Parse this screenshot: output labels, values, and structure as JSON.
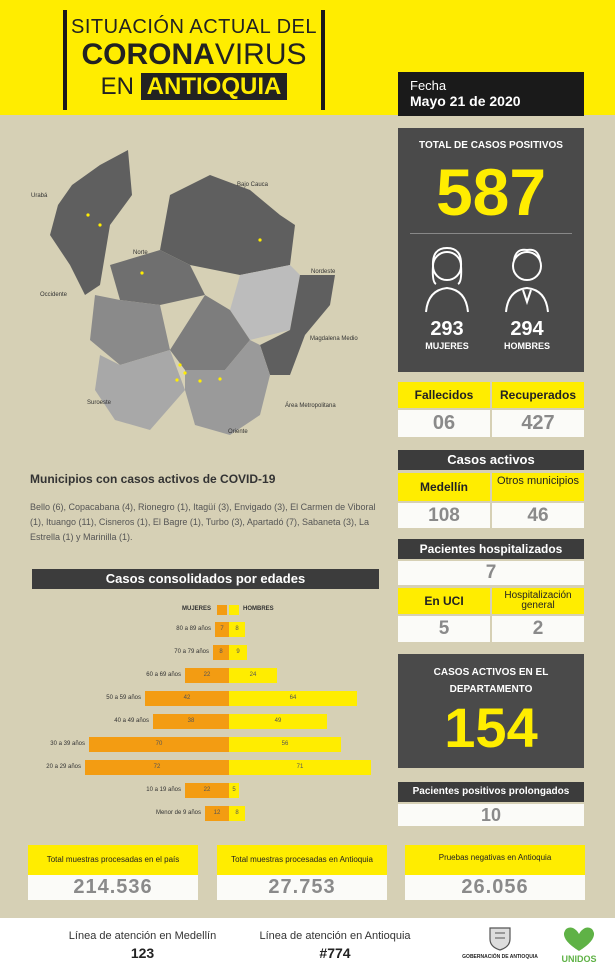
{
  "header": {
    "line1": "SITUACIÓN ACTUAL DEL",
    "line2_bold": "CORONA",
    "line2_normal": "VIRUS",
    "line3_normal": "EN",
    "line3_bold": "ANTIOQUIA"
  },
  "date": {
    "label": "Fecha",
    "value": "Mayo 21 de 2020"
  },
  "map": {
    "regions": [
      "Urabá",
      "Bajo Cauca",
      "Norte",
      "Nordeste",
      "Occidente",
      "Magdalena Medio",
      "Suroeste",
      "Área Metropolitana",
      "Oriente"
    ]
  },
  "total": {
    "title": "TOTAL DE CASOS POSITIVOS",
    "value": "587",
    "women_value": "293",
    "women_label": "MUJERES",
    "men_value": "294",
    "men_label": "HOMBRES"
  },
  "outcomes": {
    "deaths_label": "Fallecidos",
    "recovered_label": "Recuperados",
    "deaths_value": "06",
    "recovered_value": "427"
  },
  "active": {
    "title": "Casos activos",
    "medellin_label": "Medellín",
    "others_label": "Otros municipios",
    "medellin_value": "108",
    "others_value": "46"
  },
  "hospital": {
    "title": "Pacientes hospitalizados",
    "value": "7",
    "uci_label": "En UCI",
    "general_label": "Hospitalización general",
    "uci_value": "5",
    "general_value": "2"
  },
  "department": {
    "title": "CASOS ACTIVOS EN EL DEPARTAMENTO",
    "value": "154"
  },
  "prolonged": {
    "title": "Pacientes positivos prolongados",
    "value": "10"
  },
  "municipalities": {
    "title": "Municipios con casos activos de COVID-19",
    "text": "Bello (6), Copacabana (4), Rionegro (1), Itagüí (3), Envigado (3), El Carmen de Viboral (1), Ituango (11), Cisneros (1), El Bagre (1), Turbo (3), Apartadó (7), Sabaneta (3), La Estrella (1) y Marinilla (1)."
  },
  "chart_data": {
    "type": "bar",
    "title": "Casos consolidados por edades",
    "categories": [
      "80 a 89 años",
      "70 a 79 años",
      "60 a 69 años",
      "50 a 59 años",
      "40 a 49 años",
      "30 a 39 años",
      "20 a 29 años",
      "10 a 19 años",
      "Menor de 9 años"
    ],
    "series": [
      {
        "name": "MUJERES",
        "color": "#f39c12",
        "values": [
          7,
          8,
          22,
          42,
          38,
          70,
          72,
          22,
          12
        ]
      },
      {
        "name": "HOMBRES",
        "color": "#ffed00",
        "values": [
          8,
          9,
          24,
          64,
          49,
          56,
          71,
          5,
          8
        ]
      }
    ]
  },
  "samples": {
    "country_label": "Total muestras procesadas en el país",
    "country_value": "214.536",
    "antioquia_label": "Total muestras procesadas en Antioquia",
    "antioquia_value": "27.753",
    "negative_label": "Pruebas negativas en Antioquia",
    "negative_value": "26.056"
  },
  "footer": {
    "medellin_label": "Línea de atención en Medellín",
    "medellin_value": "123",
    "antioquia_label": "Línea de atención en Antioquia",
    "antioquia_value": "#774",
    "gov_label": "GOBERNACIÓN DE ANTIOQUIA",
    "unidos_label": "UNIDOS"
  }
}
